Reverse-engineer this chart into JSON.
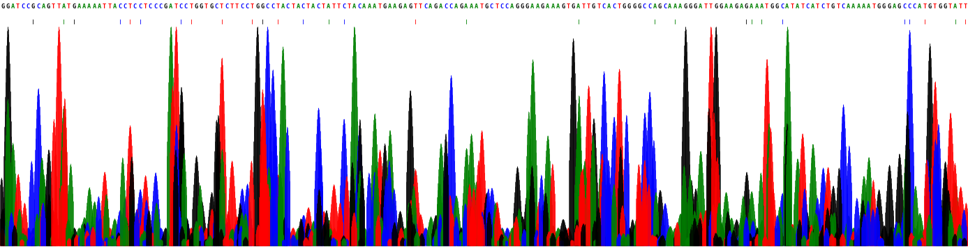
{
  "sequence": "GGATCCGCAGTTATGAAAAATTACCTCCTCCCGATCCTGGTGCTCTTCCTGGCCTACTACTACTATTCTACAAATGAAGAGTTCAGACCAGAAATGCTCCAGGGAAGAAAGTGATTGTCACTGGGGCCAGCAAAGGGATTGGAAGAGAAATGGCATATCATCTGTCAAAAATGGGAGCCCATGTGGTATT",
  "base_colors": {
    "A": "#008000",
    "T": "#ff0000",
    "G": "#000000",
    "C": "#0000ff"
  },
  "bg_color": "#ffffff",
  "fig_width": 13.87,
  "fig_height": 3.55,
  "seq_fontsize": 6.2,
  "dpi": 100
}
